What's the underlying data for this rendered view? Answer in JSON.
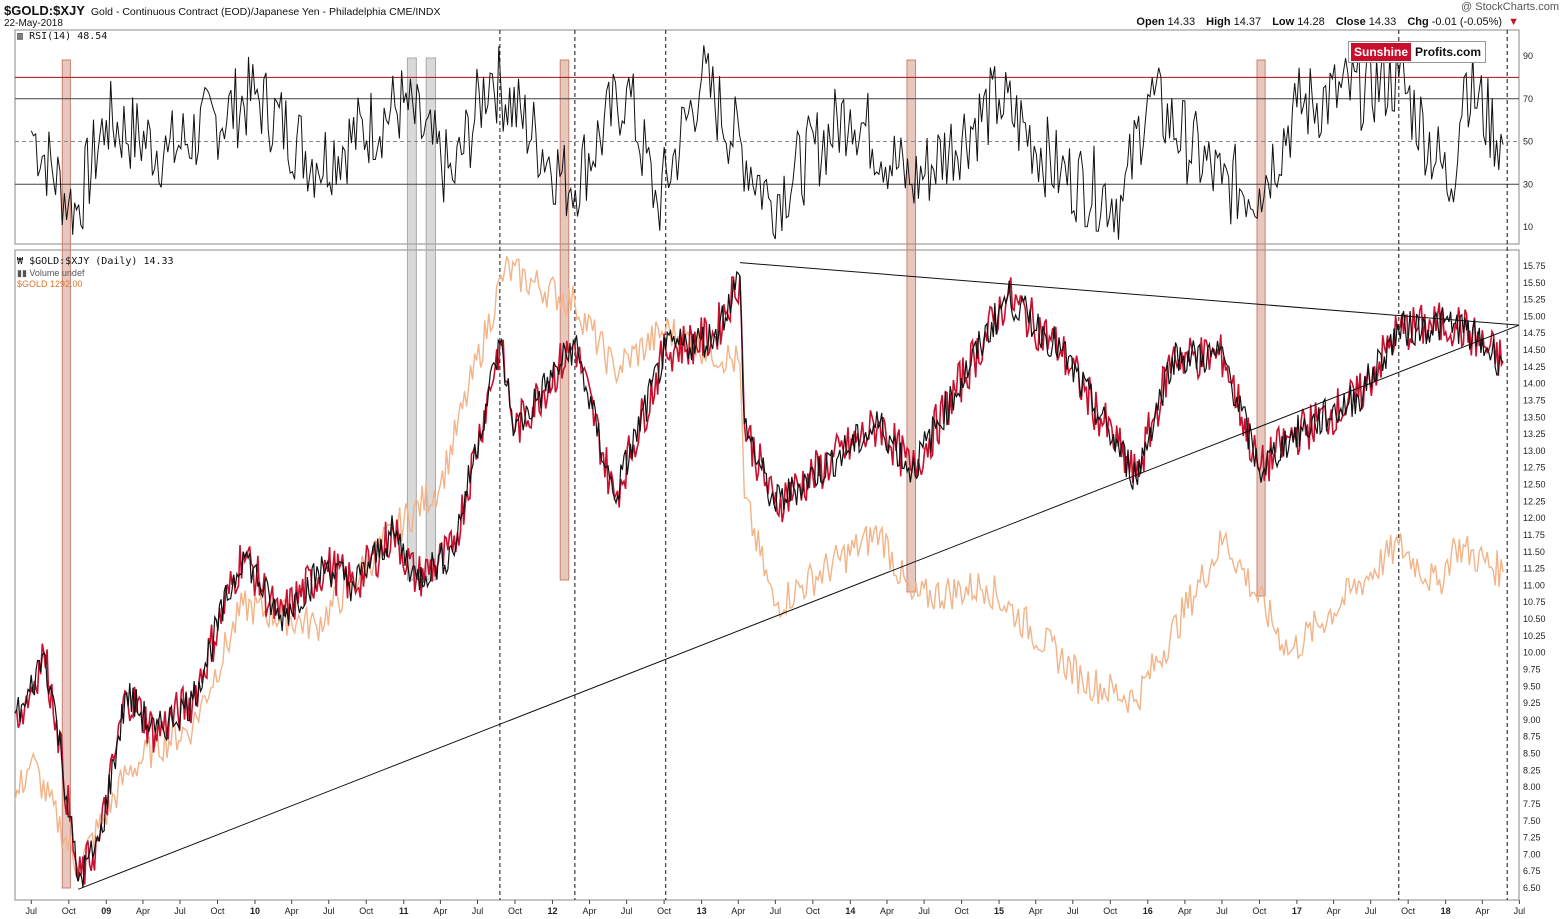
{
  "header": {
    "symbol": "$GOLD:$XJY",
    "description": "Gold - Continuous Contract (EOD)/Japanese Yen - Philadelphia",
    "exchange": "CME/INDX",
    "date": "22-May-2018",
    "watermark": "@ StockCharts.com"
  },
  "ohlc": {
    "open_label": "Open",
    "open": "14.33",
    "high_label": "High",
    "high": "14.37",
    "low_label": "Low",
    "low": "14.28",
    "close_label": "Close",
    "close": "14.33",
    "chg_label": "Chg",
    "chg": "-0.01 (-0.05%)"
  },
  "logo": {
    "part1": "Sunshine",
    "part2": "Profits.com"
  },
  "colors": {
    "price": "#111111",
    "down_bar": "#c8102e",
    "gold_overlay": "#f2b488",
    "rsi_upper": "#a01010",
    "highlight_red": "#c9826e",
    "highlight_gray": "#aaaaaa"
  },
  "chart_data": [
    {
      "type": "line",
      "title": "RSI(14) 48.54",
      "y_ticks": [
        "90",
        "70",
        "50",
        "30",
        "10"
      ],
      "ylim": [
        0,
        100
      ],
      "reference_lines": [
        80,
        70,
        50,
        30
      ],
      "series": [
        {
          "name": "RSI(14)",
          "x": [
            "2008-07-01",
            "2008-10-01",
            "2008-10-20",
            "2009-01-01",
            "2009-06-01",
            "2010-01-01",
            "2010-06-01",
            "2011-01-01",
            "2011-05-01",
            "2011-08-01",
            "2012-02-15",
            "2012-07-01",
            "2012-09-15",
            "2013-01-01",
            "2013-06-20",
            "2014-01-01",
            "2014-06-01",
            "2015-01-01",
            "2015-06-01",
            "2015-11-01",
            "2016-01-01",
            "2016-07-01",
            "2016-10-01",
            "2017-01-01",
            "2017-09-08",
            "2018-01-15",
            "2018-02-15",
            "2018-05-22"
          ],
          "values": [
            55,
            22,
            18,
            60,
            45,
            72,
            40,
            68,
            32,
            82,
            28,
            75,
            20,
            80,
            22,
            65,
            30,
            70,
            35,
            22,
            72,
            30,
            28,
            66,
            80,
            28,
            80,
            48.54
          ]
        }
      ]
    },
    {
      "type": "line",
      "title": "$GOLD:$XJY (Daily) 14.33",
      "y_ticks": [
        "15.75",
        "15.50",
        "15.25",
        "15.00",
        "14.75",
        "14.50",
        "14.25",
        "14.00",
        "13.75",
        "13.50",
        "13.25",
        "13.00",
        "12.75",
        "12.50",
        "12.25",
        "12.00",
        "11.75",
        "11.50",
        "11.25",
        "11.00",
        "10.75",
        "10.50",
        "10.25",
        "10.00",
        "9.75",
        "9.50",
        "9.25",
        "9.00",
        "8.75",
        "8.50",
        "8.25",
        "8.00",
        "7.75",
        "7.50",
        "7.25",
        "7.00",
        "6.75",
        "6.50"
      ],
      "ylim": [
        6.4,
        15.85
      ],
      "x_ticks": [
        "Jul",
        "Oct",
        "09",
        "Apr",
        "Jul",
        "Oct",
        "10",
        "Apr",
        "Jul",
        "Oct",
        "11",
        "Apr",
        "Jul",
        "Oct",
        "12",
        "Apr",
        "Jul",
        "Oct",
        "13",
        "Apr",
        "Jul",
        "Oct",
        "14",
        "Apr",
        "Jul",
        "Oct",
        "15",
        "Apr",
        "Jul",
        "Oct",
        "16",
        "Apr",
        "Jul",
        "Oct",
        "17",
        "Apr",
        "Jul",
        "Oct",
        "18",
        "Apr",
        "Jul"
      ],
      "series": [
        {
          "name": "$GOLD:$XJY (Daily)",
          "x": [
            "2008-05-22",
            "2008-06-15",
            "2008-08-01",
            "2008-09-01",
            "2008-10-24",
            "2008-12-15",
            "2009-02-20",
            "2009-05-01",
            "2009-08-01",
            "2009-12-03",
            "2010-03-01",
            "2010-06-25",
            "2010-09-01",
            "2010-12-07",
            "2011-02-01",
            "2011-05-01",
            "2011-08-25",
            "2011-10-01",
            "2012-02-25",
            "2012-06-01",
            "2012-10-05",
            "2013-02-01",
            "2013-04-05",
            "2013-04-16",
            "2013-06-28",
            "2014-03-15",
            "2014-06-01",
            "2015-01-22",
            "2015-06-01",
            "2015-12-03",
            "2016-03-01",
            "2016-07-06",
            "2016-10-01",
            "2016-12-15",
            "2017-06-01",
            "2017-09-08",
            "2018-01-25",
            "2018-05-22"
          ],
          "values": [
            9.1,
            9.2,
            10.0,
            9.0,
            6.6,
            7.2,
            9.4,
            8.8,
            9.3,
            11.5,
            10.5,
            11.3,
            11.0,
            11.8,
            11.1,
            11.5,
            14.6,
            13.3,
            14.6,
            12.3,
            14.5,
            14.7,
            15.6,
            13.4,
            12.2,
            13.4,
            12.7,
            15.3,
            14.5,
            12.6,
            14.4,
            14.4,
            12.7,
            13.2,
            13.8,
            14.8,
            14.9,
            14.33
          ]
        },
        {
          "name": "$GOLD 1292.00",
          "x": [
            "2008-05-22",
            "2008-07-01",
            "2008-10-24",
            "2009-02-20",
            "2009-05-01",
            "2009-08-01",
            "2009-12-03",
            "2010-06-01",
            "2010-12-07",
            "2011-04-01",
            "2011-09-06",
            "2012-02-25",
            "2012-06-01",
            "2012-10-05",
            "2013-04-05",
            "2013-04-16",
            "2013-06-28",
            "2014-03-15",
            "2014-06-01",
            "2014-12-01",
            "2015-07-24",
            "2015-12-03",
            "2016-07-06",
            "2016-12-15",
            "2017-09-08",
            "2017-12-12",
            "2018-01-25",
            "2018-05-22"
          ],
          "values": [
            7.8,
            8.4,
            6.8,
            8.2,
            8.6,
            8.9,
            10.7,
            10.4,
            11.8,
            12.5,
            15.7,
            15.2,
            14.2,
            14.8,
            14.3,
            12.3,
            10.7,
            11.8,
            10.8,
            11.0,
            9.6,
            9.3,
            11.7,
            10.0,
            11.6,
            11.0,
            11.6,
            11.2
          ]
        }
      ],
      "trendlines": [
        {
          "name": "downtrend",
          "x": [
            "2013-04-05",
            "2018-06-30"
          ],
          "values": [
            15.8,
            14.87
          ]
        },
        {
          "name": "uptrend",
          "x": [
            "2008-10-24",
            "2018-06-30"
          ],
          "values": [
            6.48,
            14.87
          ]
        }
      ]
    }
  ],
  "vertical_markers": [
    "2011-08-25",
    "2012-02-25",
    "2012-10-05",
    "2017-09-08",
    "2018-06-01"
  ],
  "highlight_bands": [
    {
      "color": "red",
      "from": "2008-09-15",
      "to": "2008-10-05"
    },
    {
      "color": "gray",
      "from": "2011-01-10",
      "to": "2011-02-01"
    },
    {
      "color": "gray",
      "from": "2011-02-25",
      "to": "2011-03-20"
    },
    {
      "color": "red",
      "from": "2012-01-20",
      "to": "2012-02-10"
    },
    {
      "color": "red",
      "from": "2014-05-20",
      "to": "2014-06-10"
    },
    {
      "color": "red",
      "from": "2016-09-25",
      "to": "2016-10-15"
    }
  ]
}
